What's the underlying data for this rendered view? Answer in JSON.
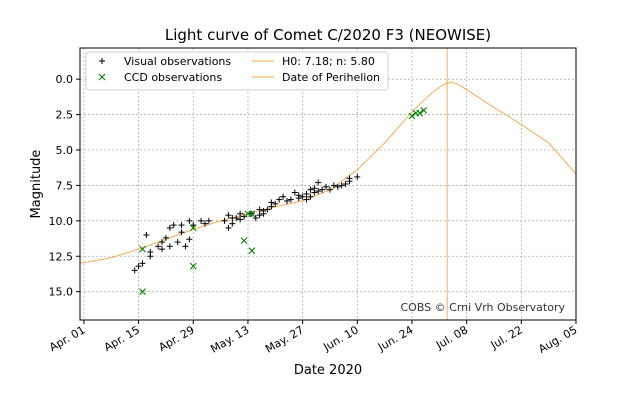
{
  "chart_data": {
    "type": "scatter",
    "title": "Light curve of Comet C/2020 F3 (NEOWISE)",
    "xlabel": "Date 2020",
    "ylabel": "Magnitude",
    "x_unit": "days since Apr. 01, 2020",
    "xlim": [
      -1,
      126
    ],
    "ylim": [
      17.0,
      -2.2
    ],
    "y_inverted": true,
    "grid": true,
    "x_ticks": [
      {
        "value": 0,
        "label": "Apr. 01"
      },
      {
        "value": 14,
        "label": "Apr. 15"
      },
      {
        "value": 28,
        "label": "Apr. 29"
      },
      {
        "value": 42,
        "label": "May. 13"
      },
      {
        "value": 56,
        "label": "May. 27"
      },
      {
        "value": 70,
        "label": "Jun. 10"
      },
      {
        "value": 84,
        "label": "Jun. 24"
      },
      {
        "value": 98,
        "label": "Jul. 08"
      },
      {
        "value": 112,
        "label": "Jul. 22"
      },
      {
        "value": 126,
        "label": "Aug. 05"
      }
    ],
    "y_ticks": [
      {
        "value": 0.0,
        "label": "0.0"
      },
      {
        "value": 2.5,
        "label": "2.5"
      },
      {
        "value": 5.0,
        "label": "5.0"
      },
      {
        "value": 7.5,
        "label": "7.5"
      },
      {
        "value": 10.0,
        "label": "10.0"
      },
      {
        "value": 12.5,
        "label": "12.5"
      },
      {
        "value": 15.0,
        "label": "15.0"
      }
    ],
    "legend": {
      "position": "top-left",
      "entries": [
        {
          "label": "Visual observations",
          "marker": "plus",
          "color": "#000000"
        },
        {
          "label": "CCD observations",
          "marker": "x",
          "color": "#008000"
        },
        {
          "label": "H0: 7.18; n: 5.80",
          "marker": "line",
          "color": "#f4a442"
        },
        {
          "label": "Date of Perihelion",
          "marker": "line",
          "color": "#f4a442"
        }
      ]
    },
    "perihelion_x": 93,
    "annotation": "COBS © Crni Vrh Observatory",
    "series": [
      {
        "name": "Visual observations",
        "marker": "plus",
        "color": "#000000",
        "points": [
          [
            13,
            13.5
          ],
          [
            14,
            13.2
          ],
          [
            15,
            13.0
          ],
          [
            16,
            11.0
          ],
          [
            17,
            12.5
          ],
          [
            17,
            12.2
          ],
          [
            19,
            11.8
          ],
          [
            20,
            11.5
          ],
          [
            20,
            12.0
          ],
          [
            21,
            11.2
          ],
          [
            22,
            11.8
          ],
          [
            22,
            10.5
          ],
          [
            23,
            10.3
          ],
          [
            24,
            11.5
          ],
          [
            25,
            10.8
          ],
          [
            25,
            10.3
          ],
          [
            26,
            11.8
          ],
          [
            27,
            11.3
          ],
          [
            27,
            10.0
          ],
          [
            28,
            10.3
          ],
          [
            30,
            10.0
          ],
          [
            31,
            10.2
          ],
          [
            32,
            10.0
          ],
          [
            36,
            10.0
          ],
          [
            37,
            9.6
          ],
          [
            37,
            10.5
          ],
          [
            38,
            10.2
          ],
          [
            38,
            9.8
          ],
          [
            39,
            9.8
          ],
          [
            40,
            9.9
          ],
          [
            40,
            9.5
          ],
          [
            41,
            9.7
          ],
          [
            43,
            9.5
          ],
          [
            44,
            9.8
          ],
          [
            45,
            9.6
          ],
          [
            45,
            9.2
          ],
          [
            46,
            9.5
          ],
          [
            46,
            9.3
          ],
          [
            47,
            9.2
          ],
          [
            48,
            9.0
          ],
          [
            48,
            8.7
          ],
          [
            49,
            8.8
          ],
          [
            50,
            8.5
          ],
          [
            51,
            8.3
          ],
          [
            52,
            8.6
          ],
          [
            53,
            8.5
          ],
          [
            54,
            8.0
          ],
          [
            55,
            8.4
          ],
          [
            55,
            8.2
          ],
          [
            56,
            8.3
          ],
          [
            57,
            8.1
          ],
          [
            57,
            8.5
          ],
          [
            58,
            7.8
          ],
          [
            58,
            8.3
          ],
          [
            59,
            8.0
          ],
          [
            59,
            7.7
          ],
          [
            60,
            7.3
          ],
          [
            60,
            7.9
          ],
          [
            61,
            7.8
          ],
          [
            62,
            7.6
          ],
          [
            63,
            7.8
          ],
          [
            64,
            7.5
          ],
          [
            65,
            7.6
          ],
          [
            66,
            7.5
          ],
          [
            67,
            7.4
          ],
          [
            68,
            7.2
          ],
          [
            68,
            7.0
          ],
          [
            70,
            6.9
          ]
        ]
      },
      {
        "name": "CCD observations",
        "marker": "x",
        "color": "#008000",
        "points": [
          [
            15,
            12.0
          ],
          [
            15,
            15.0
          ],
          [
            28,
            10.5
          ],
          [
            28,
            13.2
          ],
          [
            41,
            11.4
          ],
          [
            42,
            9.5
          ],
          [
            43,
            9.5
          ],
          [
            43,
            12.1
          ],
          [
            84,
            2.6
          ],
          [
            85,
            2.4
          ],
          [
            86,
            2.4
          ],
          [
            87,
            2.2
          ]
        ]
      },
      {
        "name": "H0: 7.18; n: 5.80",
        "type": "line",
        "color": "#f4a442",
        "points": [
          [
            -1,
            13.0
          ],
          [
            7,
            12.6
          ],
          [
            14,
            12.0
          ],
          [
            21,
            11.3
          ],
          [
            28,
            10.6
          ],
          [
            35,
            10.0
          ],
          [
            42,
            9.5
          ],
          [
            49,
            9.0
          ],
          [
            56,
            8.6
          ],
          [
            63,
            7.8
          ],
          [
            70,
            6.4
          ],
          [
            77,
            4.5
          ],
          [
            84,
            2.3
          ],
          [
            89,
            1.0
          ],
          [
            92,
            0.4
          ],
          [
            94,
            0.2
          ],
          [
            96,
            0.4
          ],
          [
            100,
            1.1
          ],
          [
            105,
            2.0
          ],
          [
            112,
            3.2
          ],
          [
            119,
            4.5
          ],
          [
            126,
            6.7
          ]
        ]
      }
    ]
  }
}
